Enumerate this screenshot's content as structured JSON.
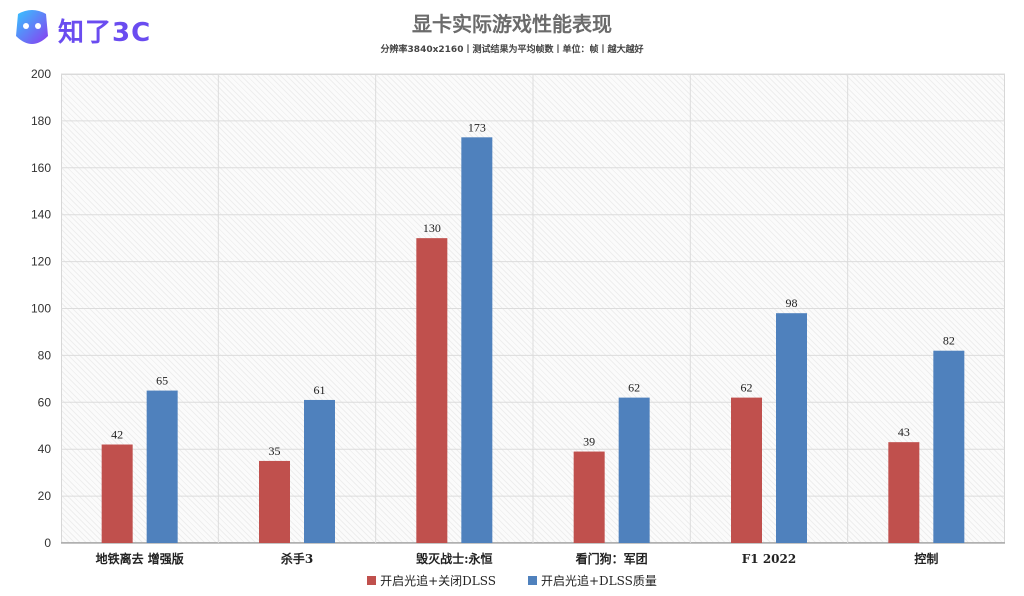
{
  "header": {
    "logo_text": "知了3C",
    "title": "显卡实际游戏性能表现",
    "subtitle": "分辨率3840x2160丨测试结果为平均帧数丨单位：帧丨越大越好"
  },
  "colors": {
    "series1": "#c0504d",
    "series2": "#4f81bd",
    "logo": "#6a4cf0"
  },
  "chart_data": {
    "type": "bar",
    "categories": [
      "地铁离去 增强版",
      "杀手3",
      "毁灭战士:永恒",
      "看门狗：军团",
      "F1 2022",
      "控制"
    ],
    "series": [
      {
        "name": "开启光追+关闭DLSS",
        "values": [
          42,
          35,
          130,
          39,
          62,
          43
        ]
      },
      {
        "name": "开启光追+DLSS质量",
        "values": [
          65,
          61,
          173,
          62,
          98,
          82
        ]
      }
    ],
    "ylim": [
      0,
      200
    ],
    "yticks": [
      0,
      20,
      40,
      60,
      80,
      100,
      120,
      140,
      160,
      180,
      200
    ],
    "grid": true,
    "legend_position": "bottom"
  }
}
